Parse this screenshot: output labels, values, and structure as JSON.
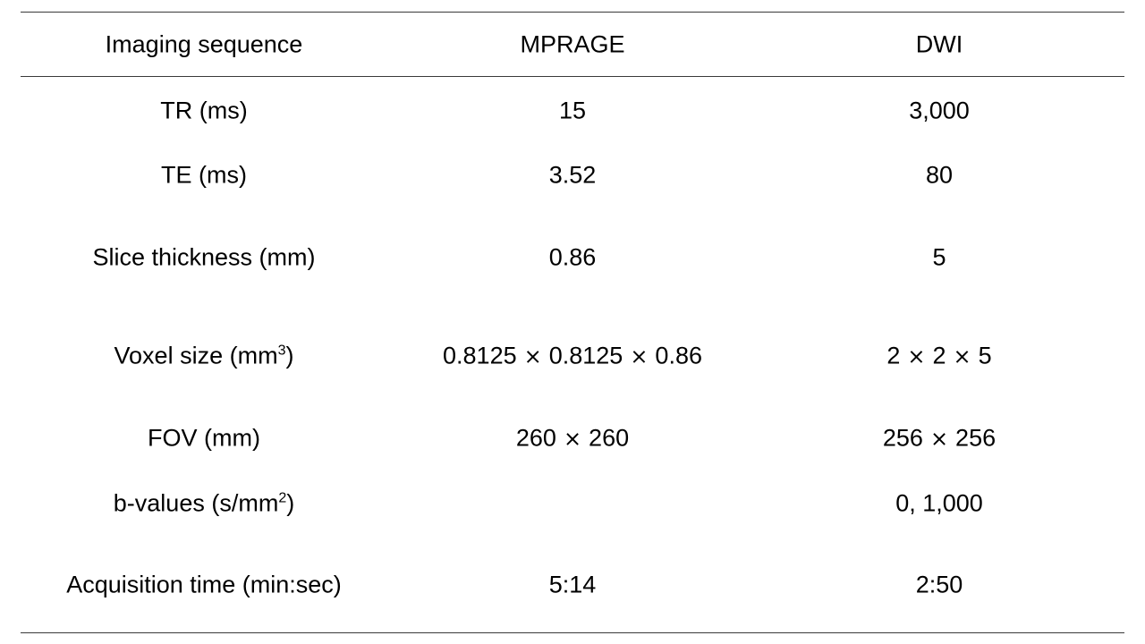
{
  "table": {
    "headers": [
      "Imaging sequence",
      "MPRAGE",
      "DWI"
    ],
    "rows": [
      {
        "label": "TR (ms)",
        "label_sup": "",
        "label_suffix": "",
        "mprage": "15",
        "dwi": "3,000"
      },
      {
        "label": "TE (ms)",
        "label_sup": "",
        "label_suffix": "",
        "mprage": "3.52",
        "dwi": "80"
      },
      {
        "label": "Slice thickness (mm)",
        "label_sup": "",
        "label_suffix": "",
        "mprage": "0.86",
        "dwi": "5"
      },
      {
        "label": "Voxel size (mm",
        "label_sup": "3",
        "label_suffix": ")",
        "mprage_parts": [
          "0.8125",
          "0.8125",
          "0.86"
        ],
        "dwi_parts": [
          "2",
          "2",
          "5"
        ]
      },
      {
        "label": "FOV (mm)",
        "label_sup": "",
        "label_suffix": "",
        "mprage_parts": [
          "260",
          "260"
        ],
        "dwi_parts": [
          "256",
          "256"
        ]
      },
      {
        "label": "b-values (s/mm",
        "label_sup": "2",
        "label_suffix": ")",
        "mprage": "",
        "dwi": "0, 1,000"
      },
      {
        "label": "Acquisition time (min:sec)",
        "label_sup": "",
        "label_suffix": "",
        "mprage": "5:14",
        "dwi": "2:50"
      }
    ],
    "times_symbol": "×"
  }
}
